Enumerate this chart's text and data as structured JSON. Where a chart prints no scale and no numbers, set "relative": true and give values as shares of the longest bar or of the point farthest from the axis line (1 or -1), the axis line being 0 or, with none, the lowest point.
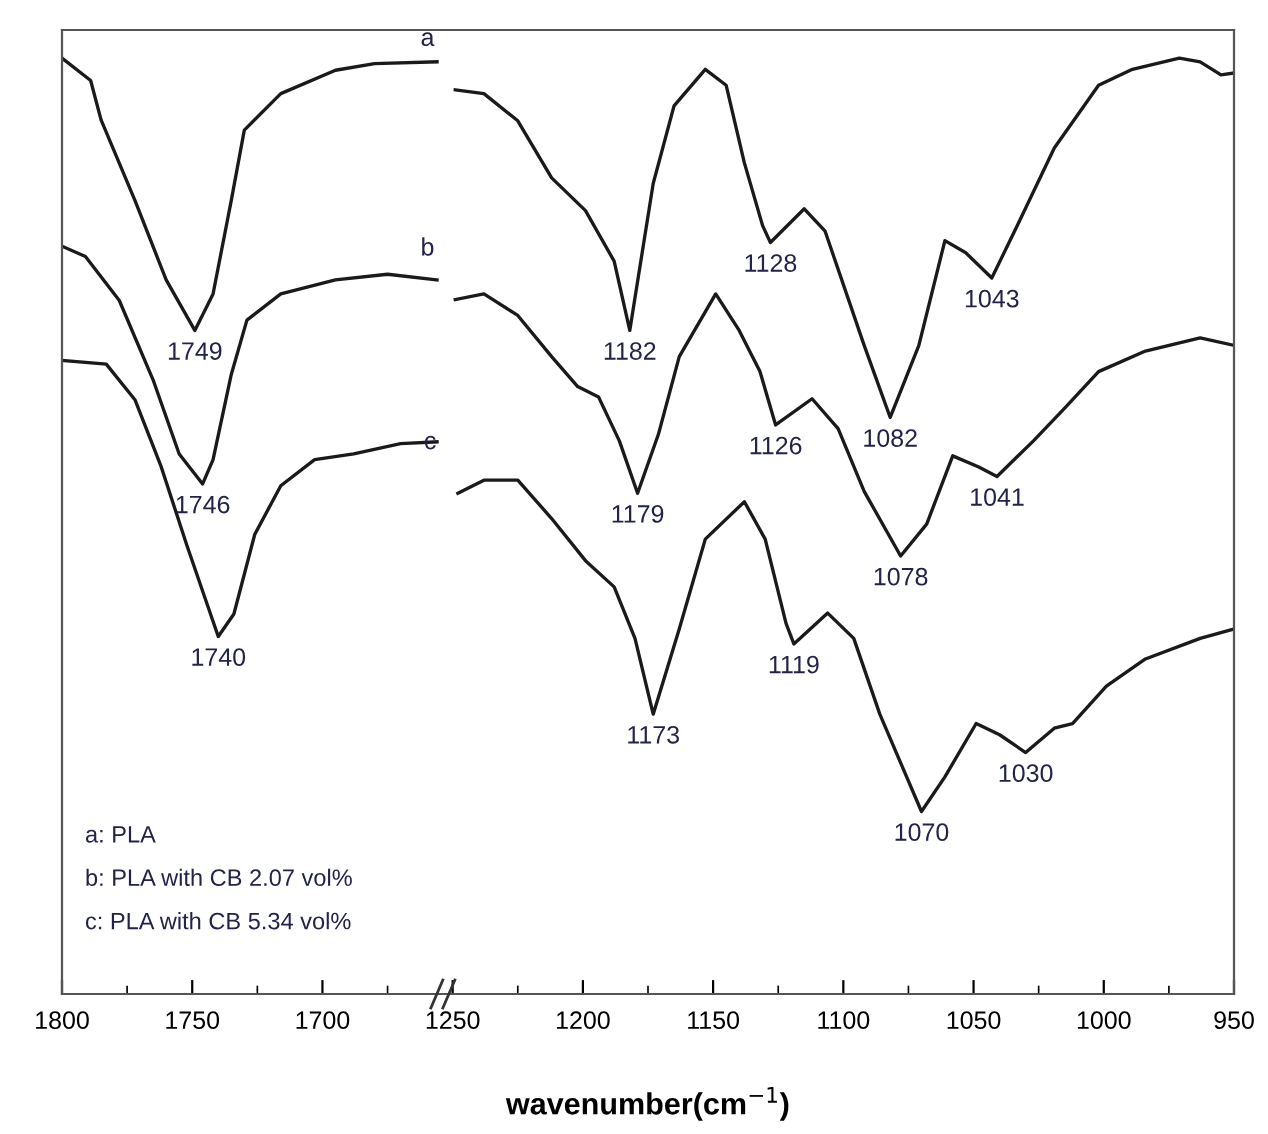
{
  "chart_data": [
    {
      "type": "line",
      "relative": true,
      "xlim": [
        1800,
        1653
      ],
      "xticks": [
        1800,
        {
          "value": 1775,
          "label": null
        },
        1750,
        {
          "value": 1725,
          "label": null
        },
        1700,
        {
          "value": 1675,
          "label": null
        }
      ],
      "tick_labels": "x",
      "xlabel": "wavenumber(cm$^{−1}$)",
      "line_style": "solid",
      "series": [
        {
          "color": "#1a1a1a",
          "x": [
            1800,
            1789,
            1785,
            1772,
            1760,
            1749,
            1742,
            1735,
            1730,
            1716,
            1695,
            1680,
            1656
          ],
          "values": [
            1.0,
            0.976,
            0.934,
            0.848,
            0.763,
            0.709,
            0.748,
            0.848,
            0.923,
            0.962,
            0.987,
            0.994,
            0.996
          ]
        },
        {
          "color": "#1a1a1a",
          "x": [
            1800,
            1791,
            1778,
            1765,
            1755,
            1746,
            1742,
            1735,
            1729,
            1716,
            1695,
            1675,
            1656
          ],
          "values": [
            0.799,
            0.788,
            0.741,
            0.656,
            0.577,
            0.545,
            0.571,
            0.662,
            0.72,
            0.748,
            0.763,
            0.769,
            0.763
          ]
        },
        {
          "color": "#1a1a1a",
          "x": [
            1800,
            1783,
            1772,
            1762,
            1752,
            1740,
            1734,
            1726,
            1716,
            1703,
            1688,
            1670,
            1656
          ],
          "values": [
            0.677,
            0.673,
            0.635,
            0.564,
            0.479,
            0.382,
            0.406,
            0.491,
            0.543,
            0.571,
            0.577,
            0.588,
            0.59
          ]
        }
      ],
      "annotations": [
        {
          "text": "1749",
          "x": 1749,
          "y": 0.709
        },
        {
          "text": "1746",
          "x": 1746,
          "y": 0.545
        },
        {
          "text": "1740",
          "x": 1740,
          "y": 0.382
        },
        "a: PLA",
        "b: PLA with CB 2.07 vol%",
        "c: PLA with CB 5.34 vol%"
      ]
    },
    {
      "type": "line",
      "relative": true,
      "xlim": [
        1253,
        950
      ],
      "xticks": [
        1250,
        {
          "value": 1225,
          "label": null
        },
        1200,
        {
          "value": 1175,
          "label": null
        },
        1150,
        {
          "value": 1125,
          "label": null
        },
        1100,
        {
          "value": 1075,
          "label": null
        },
        1050,
        {
          "value": 1025,
          "label": null
        },
        1000,
        {
          "value": 975,
          "label": null
        },
        950
      ],
      "tick_labels": "x",
      "line_style": "solid",
      "series": [
        {
          "name": "a",
          "color": "#1a1a1a",
          "x": [
            1249,
            1238,
            1225,
            1212,
            1199,
            1188,
            1182,
            1173,
            1165,
            1153,
            1145,
            1138,
            1131,
            1128,
            1115,
            1107,
            1092,
            1082,
            1071,
            1061,
            1053,
            1043,
            1032,
            1019,
            1002,
            989,
            971,
            963,
            955,
            950
          ],
          "values": [
            0.966,
            0.962,
            0.933,
            0.872,
            0.837,
            0.783,
            0.709,
            0.866,
            0.949,
            0.988,
            0.971,
            0.888,
            0.821,
            0.803,
            0.839,
            0.815,
            0.693,
            0.616,
            0.693,
            0.805,
            0.792,
            0.765,
            0.828,
            0.904,
            0.971,
            0.988,
            1.0,
            0.996,
            0.982,
            0.984
          ]
        },
        {
          "name": "b",
          "color": "#1a1a1a",
          "x": [
            1249,
            1238,
            1225,
            1212,
            1202,
            1194,
            1186,
            1179,
            1171,
            1163,
            1149,
            1140,
            1132,
            1126,
            1112,
            1102,
            1092,
            1078,
            1068,
            1058,
            1048,
            1041,
            1027,
            1015,
            1002,
            984,
            963,
            950
          ],
          "values": [
            0.742,
            0.748,
            0.725,
            0.681,
            0.649,
            0.638,
            0.591,
            0.535,
            0.598,
            0.681,
            0.748,
            0.709,
            0.665,
            0.608,
            0.636,
            0.604,
            0.537,
            0.468,
            0.502,
            0.575,
            0.563,
            0.553,
            0.591,
            0.626,
            0.665,
            0.687,
            0.701,
            0.693
          ]
        },
        {
          "name": "c",
          "color": "#1a1a1a",
          "x": [
            1248,
            1238,
            1225,
            1212,
            1199,
            1188,
            1180,
            1173,
            1163,
            1153,
            1138,
            1130,
            1122,
            1119,
            1106,
            1096,
            1086,
            1070,
            1061,
            1049,
            1040,
            1030,
            1019,
            1012,
            999,
            984,
            963,
            950
          ],
          "values": [
            0.535,
            0.549,
            0.549,
            0.508,
            0.463,
            0.435,
            0.38,
            0.299,
            0.39,
            0.486,
            0.526,
            0.486,
            0.396,
            0.374,
            0.407,
            0.38,
            0.299,
            0.195,
            0.232,
            0.289,
            0.277,
            0.258,
            0.284,
            0.289,
            0.329,
            0.358,
            0.38,
            0.39
          ]
        }
      ],
      "annotations": [
        {
          "text": "1182",
          "x": 1182,
          "y": 0.709
        },
        {
          "text": "1128",
          "x": 1128,
          "y": 0.803
        },
        {
          "text": "1082",
          "x": 1082,
          "y": 0.616
        },
        {
          "text": "1043",
          "x": 1043,
          "y": 0.765
        },
        {
          "text": "1179",
          "x": 1179,
          "y": 0.535
        },
        {
          "text": "1126",
          "x": 1126,
          "y": 0.608
        },
        {
          "text": "1078",
          "x": 1078,
          "y": 0.468
        },
        {
          "text": "1041",
          "x": 1041,
          "y": 0.553
        },
        {
          "text": "1173",
          "x": 1173,
          "y": 0.299
        },
        {
          "text": "1119",
          "x": 1119,
          "y": 0.374
        },
        {
          "text": "1070",
          "x": 1070,
          "y": 0.195
        },
        {
          "text": "1030",
          "x": 1030,
          "y": 0.258
        }
      ]
    }
  ]
}
